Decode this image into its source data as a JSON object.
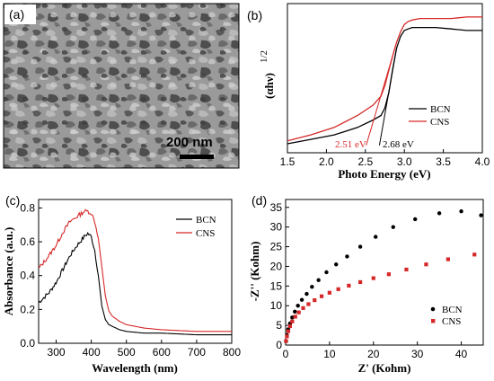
{
  "panels": {
    "a": {
      "label": "(a)",
      "scale_bar_text": "200 nm"
    },
    "b": {
      "label": "(b)"
    },
    "c": {
      "label": "(c)"
    },
    "d": {
      "label": "(d)"
    }
  },
  "colors": {
    "BCN": "#000000",
    "CNS": "#d62828",
    "frame": "#000000"
  },
  "chart_data": [
    {
      "panel": "b",
      "type": "line",
      "xlabel": "Photo Energy (eV)",
      "ylabel": "(αhν)",
      "ylabel_sup": "1/2",
      "xlim": [
        1.5,
        4.0
      ],
      "ylim": [
        0,
        1
      ],
      "xticks": [
        "1.5",
        "2.0",
        "2.5",
        "3.0",
        "3.5",
        "4.0"
      ],
      "legend_position": "right",
      "series": [
        {
          "name": "BCN",
          "x": [
            1.5,
            1.8,
            2.1,
            2.4,
            2.6,
            2.7,
            2.75,
            2.8,
            2.85,
            2.9,
            2.95,
            3.0,
            3.05,
            3.1,
            3.2,
            3.4,
            3.6,
            3.8,
            4.0
          ],
          "y": [
            0.06,
            0.09,
            0.12,
            0.17,
            0.22,
            0.25,
            0.3,
            0.4,
            0.56,
            0.7,
            0.78,
            0.82,
            0.83,
            0.84,
            0.84,
            0.84,
            0.83,
            0.82,
            0.82
          ]
        },
        {
          "name": "CNS",
          "x": [
            1.5,
            1.8,
            2.1,
            2.4,
            2.6,
            2.7,
            2.75,
            2.8,
            2.85,
            2.9,
            2.95,
            3.0,
            3.05,
            3.1,
            3.2,
            3.4,
            3.6,
            3.8,
            4.0
          ],
          "y": [
            0.08,
            0.12,
            0.17,
            0.25,
            0.32,
            0.38,
            0.45,
            0.55,
            0.65,
            0.74,
            0.81,
            0.86,
            0.88,
            0.89,
            0.9,
            0.9,
            0.9,
            0.91,
            0.91
          ]
        }
      ],
      "tangents": [
        {
          "name": "BCN",
          "intercept": 2.68,
          "x2": 2.9,
          "y2": 0.7
        },
        {
          "name": "CNS",
          "intercept": 2.51,
          "x2": 2.85,
          "y2": 0.65
        }
      ],
      "annotations": [
        {
          "text": "2.51 eV",
          "series": "CNS",
          "x": 2.51
        },
        {
          "text": "2.68 eV",
          "series": "BCN",
          "x": 2.68
        }
      ]
    },
    {
      "panel": "c",
      "type": "line",
      "xlabel": "Wavelength (nm)",
      "ylabel": "Absorbance (a.u.)",
      "xlim": [
        250,
        800
      ],
      "ylim": [
        0,
        0.85
      ],
      "xticks": [
        300,
        400,
        500,
        600,
        700,
        800
      ],
      "yticks": [
        "0.0",
        "0.2",
        "0.4",
        "0.6",
        "0.8"
      ],
      "yticks_values": [
        0.0,
        0.2,
        0.4,
        0.6,
        0.8
      ],
      "legend_position": "top-right",
      "series": [
        {
          "name": "BCN",
          "x": [
            250,
            280,
            300,
            320,
            340,
            360,
            380,
            390,
            400,
            410,
            420,
            430,
            440,
            450,
            460,
            480,
            500,
            550,
            600,
            700,
            800
          ],
          "y": [
            0.24,
            0.3,
            0.36,
            0.44,
            0.52,
            0.58,
            0.63,
            0.65,
            0.63,
            0.55,
            0.4,
            0.22,
            0.14,
            0.11,
            0.1,
            0.08,
            0.07,
            0.06,
            0.06,
            0.05,
            0.05
          ]
        },
        {
          "name": "CNS",
          "x": [
            250,
            280,
            300,
            320,
            340,
            360,
            380,
            390,
            400,
            410,
            420,
            430,
            440,
            450,
            460,
            480,
            500,
            550,
            600,
            700,
            800
          ],
          "y": [
            0.44,
            0.52,
            0.58,
            0.66,
            0.72,
            0.75,
            0.78,
            0.78,
            0.77,
            0.72,
            0.62,
            0.45,
            0.28,
            0.19,
            0.16,
            0.13,
            0.11,
            0.09,
            0.08,
            0.07,
            0.07
          ]
        }
      ]
    },
    {
      "panel": "d",
      "type": "scatter",
      "xlabel": "Z' (Kohm)",
      "ylabel": "-Z'' (Kohm)",
      "xlim": [
        0,
        45
      ],
      "ylim": [
        0,
        37
      ],
      "xticks": [
        0,
        10,
        20,
        30,
        40
      ],
      "yticks": [
        0,
        5,
        10,
        15,
        20,
        25,
        30,
        35
      ],
      "legend_position": "bottom-right",
      "series": [
        {
          "name": "BCN",
          "marker": "circle",
          "x": [
            0.1,
            0.3,
            0.6,
            1.0,
            1.5,
            2.1,
            2.8,
            3.7,
            4.8,
            6.0,
            7.5,
            9.3,
            11.5,
            14.0,
            17.0,
            20.5,
            24.5,
            29.5,
            35.0,
            40.0,
            44.5
          ],
          "y": [
            1.0,
            2.5,
            4.0,
            5.5,
            7.0,
            8.5,
            10.0,
            11.5,
            13.0,
            14.8,
            16.5,
            18.5,
            20.5,
            22.5,
            25.0,
            27.5,
            30.0,
            32.0,
            33.5,
            34.0,
            33.0
          ]
        },
        {
          "name": "CNS",
          "marker": "square",
          "x": [
            0.1,
            0.3,
            0.6,
            1.0,
            1.5,
            2.2,
            3.0,
            4.0,
            5.2,
            6.6,
            8.2,
            10.0,
            12.0,
            14.4,
            17.0,
            20.0,
            23.5,
            27.5,
            32.0,
            37.0,
            43.0
          ],
          "y": [
            1.0,
            2.2,
            3.5,
            4.8,
            6.0,
            7.2,
            8.3,
            9.4,
            10.4,
            11.4,
            12.4,
            13.3,
            14.2,
            15.1,
            16.0,
            17.0,
            18.0,
            19.2,
            20.5,
            21.8,
            23.0
          ]
        }
      ]
    }
  ]
}
